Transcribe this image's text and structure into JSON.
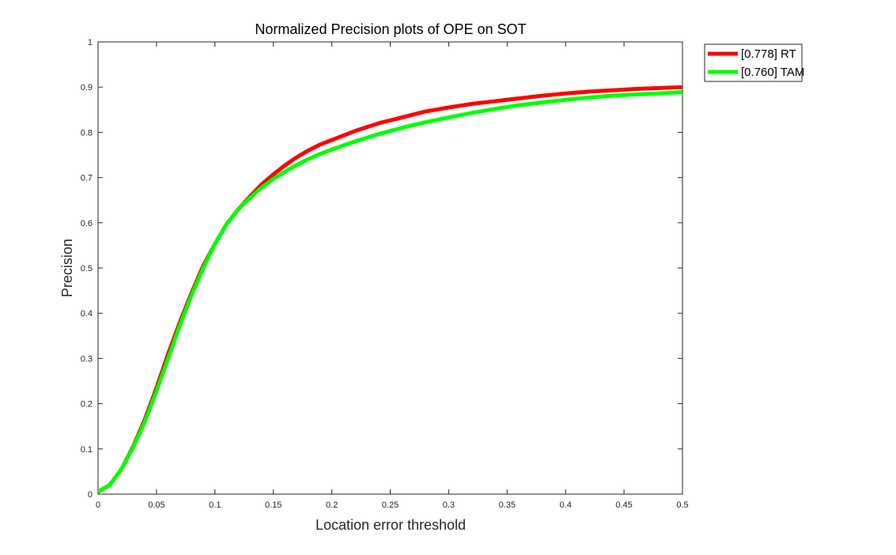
{
  "chart_data": {
    "type": "line",
    "title": "Normalized Precision plots of OPE on SOT",
    "xlabel": "Location error threshold",
    "ylabel": "Precision",
    "xlim": [
      0,
      0.5
    ],
    "ylim": [
      0,
      1
    ],
    "xticks": [
      "0",
      "0.05",
      "0.1",
      "0.15",
      "0.2",
      "0.25",
      "0.3",
      "0.35",
      "0.4",
      "0.45",
      "0.5"
    ],
    "yticks": [
      "0",
      "0.1",
      "0.2",
      "0.3",
      "0.4",
      "0.5",
      "0.6",
      "0.7",
      "0.8",
      "0.9",
      "1"
    ],
    "grid": false,
    "legend_position": "outside-top-right",
    "x": [
      0,
      0.01,
      0.02,
      0.03,
      0.04,
      0.05,
      0.06,
      0.07,
      0.08,
      0.09,
      0.1,
      0.11,
      0.12,
      0.13,
      0.14,
      0.15,
      0.16,
      0.17,
      0.18,
      0.19,
      0.2,
      0.22,
      0.24,
      0.26,
      0.28,
      0.3,
      0.32,
      0.34,
      0.36,
      0.38,
      0.4,
      0.42,
      0.44,
      0.46,
      0.48,
      0.5
    ],
    "series": [
      {
        "name": "[0.778] RT",
        "color": "#ff0000",
        "values": [
          0.005,
          0.02,
          0.055,
          0.105,
          0.165,
          0.235,
          0.31,
          0.38,
          0.445,
          0.505,
          0.553,
          0.597,
          0.63,
          0.658,
          0.685,
          0.707,
          0.727,
          0.745,
          0.76,
          0.773,
          0.783,
          0.803,
          0.82,
          0.833,
          0.846,
          0.855,
          0.863,
          0.869,
          0.875,
          0.881,
          0.886,
          0.89,
          0.893,
          0.896,
          0.898,
          0.9
        ]
      },
      {
        "name": "[0.760] TAM",
        "color": "#00ff00",
        "values": [
          0.005,
          0.02,
          0.055,
          0.103,
          0.16,
          0.228,
          0.3,
          0.373,
          0.44,
          0.5,
          0.553,
          0.597,
          0.63,
          0.655,
          0.678,
          0.697,
          0.713,
          0.728,
          0.741,
          0.752,
          0.762,
          0.78,
          0.796,
          0.81,
          0.822,
          0.833,
          0.843,
          0.852,
          0.86,
          0.866,
          0.872,
          0.877,
          0.881,
          0.884,
          0.886,
          0.889
        ]
      }
    ]
  }
}
